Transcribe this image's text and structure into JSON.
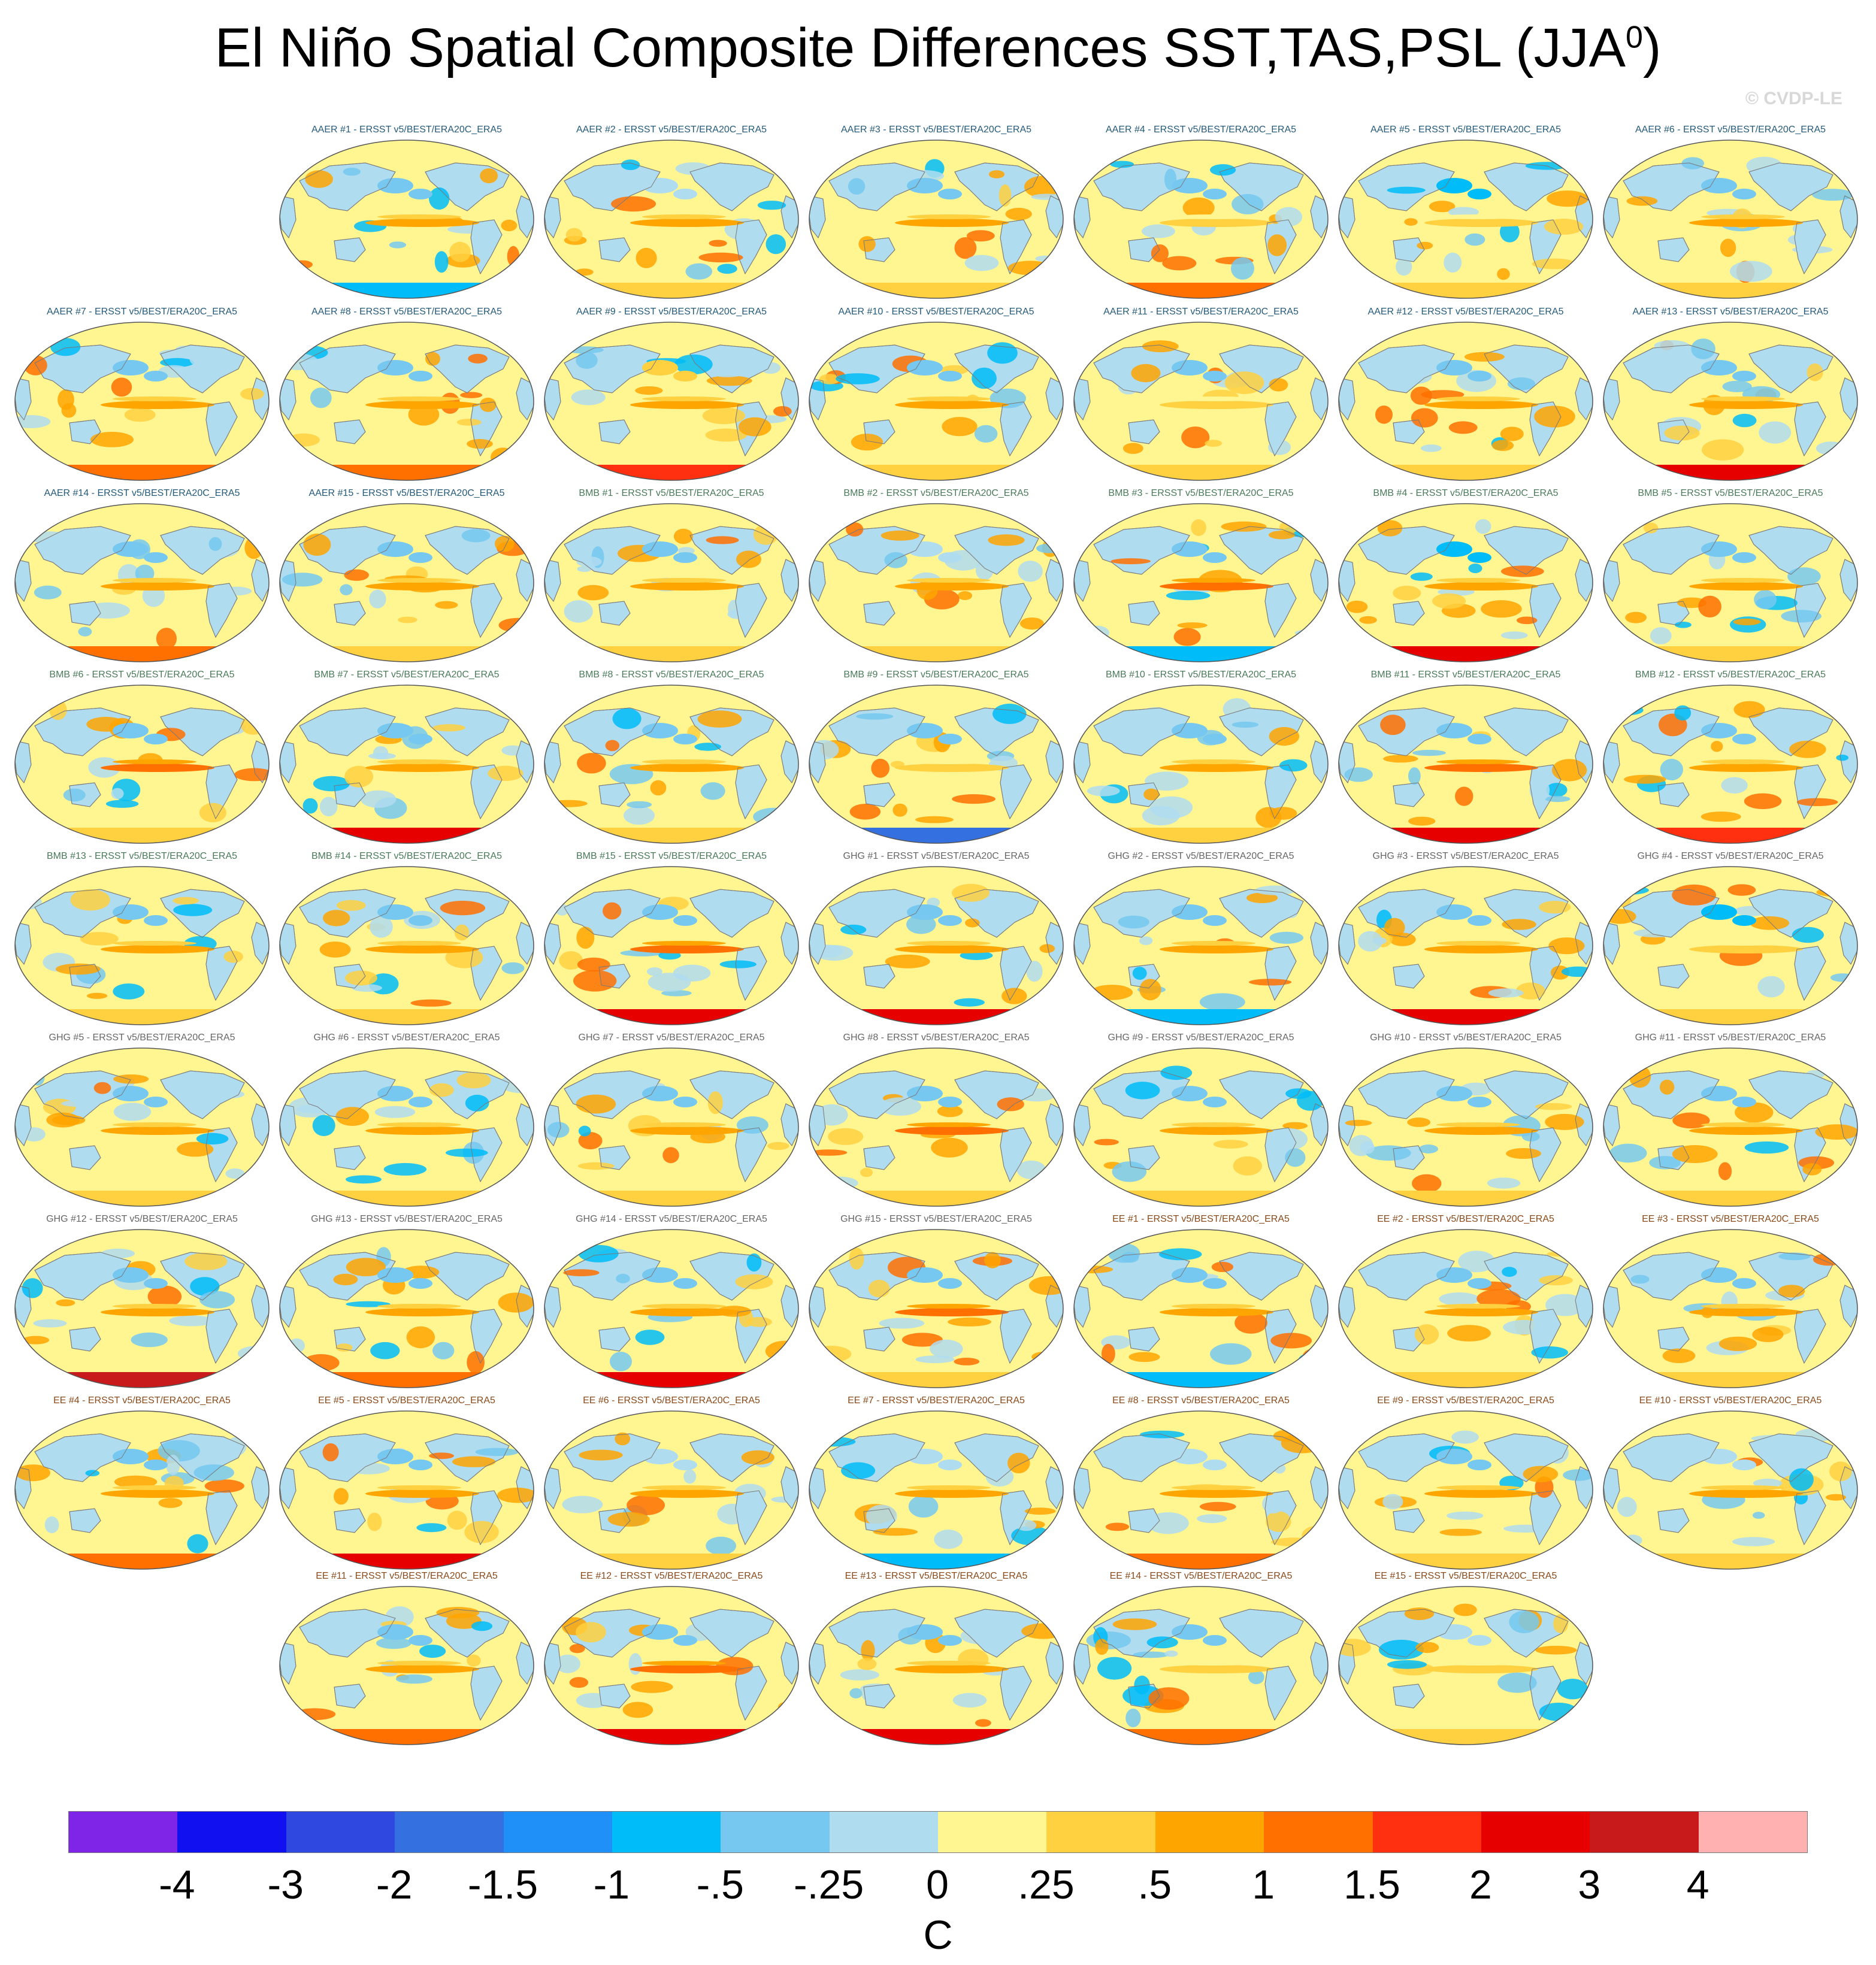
{
  "title": {
    "text": "El Niño Spatial Composite Differences SST,TAS,PSL (JJA",
    "superscript": "0",
    "close": ")"
  },
  "copyright": "© CVDP-LE",
  "colors": {
    "land": "#b0dcf0",
    "ocean_base": "#fff591",
    "coast": "#7a7a7a",
    "label_aaer": "#245a7a",
    "label_bmb": "#4a7a5a",
    "label_ghg": "#666666",
    "label_ee": "#8a4a1a"
  },
  "chart_data": {
    "type": "heatmap",
    "title": "El Niño Spatial Composite Differences SST,TAS,PSL (JJA0)",
    "projection": "Robinson global map",
    "variable": "SST/TAS composite difference",
    "units": "C",
    "colorbar": {
      "ticks": [
        "-4",
        "-3",
        "-2",
        "-1.5",
        "-1",
        "-.5",
        "-.25",
        "0",
        ".25",
        ".5",
        "1",
        "1.5",
        "2",
        "3",
        "4"
      ],
      "colors": [
        "#7f25e8",
        "#1010f0",
        "#2e48e0",
        "#3470e0",
        "#1e90f8",
        "#00bcf8",
        "#76c8f0",
        "#b0dcf0",
        "#fff591",
        "#ffd040",
        "#ffa500",
        "#ff7000",
        "#ff3010",
        "#e60000",
        "#c81a1a",
        "#ffb0b0"
      ]
    },
    "panels": [
      {
        "label": "AAER #1 - ERSST v5/BEST/ERA20C_ERA5",
        "group": "AAER",
        "antarctic_anomaly": -1.0,
        "nino34_anomaly": 0.5,
        "north_pacific_anomaly": -0.5
      },
      {
        "label": "AAER #2 - ERSST v5/BEST/ERA20C_ERA5",
        "group": "AAER",
        "antarctic_anomaly": 0.25,
        "nino34_anomaly": 0.5,
        "north_pacific_anomaly": -0.25
      },
      {
        "label": "AAER #3 - ERSST v5/BEST/ERA20C_ERA5",
        "group": "AAER",
        "antarctic_anomaly": 0.25,
        "nino34_anomaly": 0.5,
        "north_pacific_anomaly": -0.5
      },
      {
        "label": "AAER #4 - ERSST v5/BEST/ERA20C_ERA5",
        "group": "AAER",
        "antarctic_anomaly": 1.0,
        "nino34_anomaly": 0.25,
        "north_pacific_anomaly": -0.5
      },
      {
        "label": "AAER #5 - ERSST v5/BEST/ERA20C_ERA5",
        "group": "AAER",
        "antarctic_anomaly": 0.25,
        "nino34_anomaly": 0.25,
        "north_pacific_anomaly": -1.0
      },
      {
        "label": "AAER #6 - ERSST v5/BEST/ERA20C_ERA5",
        "group": "AAER",
        "antarctic_anomaly": 0.25,
        "nino34_anomaly": 0.5,
        "north_pacific_anomaly": -0.5
      },
      {
        "label": "AAER #7 - ERSST v5/BEST/ERA20C_ERA5",
        "group": "AAER",
        "antarctic_anomaly": 1.0,
        "nino34_anomaly": 0.5,
        "north_pacific_anomaly": -0.5
      },
      {
        "label": "AAER #8 - ERSST v5/BEST/ERA20C_ERA5",
        "group": "AAER",
        "antarctic_anomaly": 1.0,
        "nino34_anomaly": 0.5,
        "north_pacific_anomaly": -0.5
      },
      {
        "label": "AAER #9 - ERSST v5/BEST/ERA20C_ERA5",
        "group": "AAER",
        "antarctic_anomaly": 1.5,
        "nino34_anomaly": 0.5,
        "north_pacific_anomaly": 0.25
      },
      {
        "label": "AAER #10 - ERSST v5/BEST/ERA20C_ERA5",
        "group": "AAER",
        "antarctic_anomaly": 0.25,
        "nino34_anomaly": 0.5,
        "north_pacific_anomaly": -0.5
      },
      {
        "label": "AAER #11 - ERSST v5/BEST/ERA20C_ERA5",
        "group": "AAER",
        "antarctic_anomaly": 0.25,
        "nino34_anomaly": 0.25,
        "north_pacific_anomaly": -0.5
      },
      {
        "label": "AAER #12 - ERSST v5/BEST/ERA20C_ERA5",
        "group": "AAER",
        "antarctic_anomaly": 0.25,
        "nino34_anomaly": 0.5,
        "north_pacific_anomaly": -0.5
      },
      {
        "label": "AAER #13 - ERSST v5/BEST/ERA20C_ERA5",
        "group": "AAER",
        "antarctic_anomaly": 2.0,
        "nino34_anomaly": 0.5,
        "north_pacific_anomaly": -0.5
      },
      {
        "label": "AAER #14 - ERSST v5/BEST/ERA20C_ERA5",
        "group": "AAER",
        "antarctic_anomaly": 1.0,
        "nino34_anomaly": 0.5,
        "north_pacific_anomaly": -0.5
      },
      {
        "label": "AAER #15 - ERSST v5/BEST/ERA20C_ERA5",
        "group": "AAER",
        "antarctic_anomaly": 0.25,
        "nino34_anomaly": 0.5,
        "north_pacific_anomaly": -0.5
      },
      {
        "label": "BMB #1 - ERSST v5/BEST/ERA20C_ERA5",
        "group": "BMB",
        "antarctic_anomaly": 0.25,
        "nino34_anomaly": 0.5,
        "north_pacific_anomaly": -0.5
      },
      {
        "label": "BMB #2 - ERSST v5/BEST/ERA20C_ERA5",
        "group": "BMB",
        "antarctic_anomaly": 0.25,
        "nino34_anomaly": 0.5,
        "north_pacific_anomaly": -0.25
      },
      {
        "label": "BMB #3 - ERSST v5/BEST/ERA20C_ERA5",
        "group": "BMB",
        "antarctic_anomaly": -1.0,
        "nino34_anomaly": 1.0,
        "north_pacific_anomaly": -0.5
      },
      {
        "label": "BMB #4 - ERSST v5/BEST/ERA20C_ERA5",
        "group": "BMB",
        "antarctic_anomaly": 2.0,
        "nino34_anomaly": 0.5,
        "north_pacific_anomaly": -1.0
      },
      {
        "label": "BMB #5 - ERSST v5/BEST/ERA20C_ERA5",
        "group": "BMB",
        "antarctic_anomaly": 0.25,
        "nino34_anomaly": 0.5,
        "north_pacific_anomaly": -0.5
      },
      {
        "label": "BMB #6 - ERSST v5/BEST/ERA20C_ERA5",
        "group": "BMB",
        "antarctic_anomaly": 0.25,
        "nino34_anomaly": 1.0,
        "north_pacific_anomaly": -0.5
      },
      {
        "label": "BMB #7 - ERSST v5/BEST/ERA20C_ERA5",
        "group": "BMB",
        "antarctic_anomaly": 2.0,
        "nino34_anomaly": 0.5,
        "north_pacific_anomaly": -0.5
      },
      {
        "label": "BMB #8 - ERSST v5/BEST/ERA20C_ERA5",
        "group": "BMB",
        "antarctic_anomaly": 0.25,
        "nino34_anomaly": 0.5,
        "north_pacific_anomaly": -0.5
      },
      {
        "label": "BMB #9 - ERSST v5/BEST/ERA20C_ERA5",
        "group": "BMB",
        "antarctic_anomaly": -2.0,
        "nino34_anomaly": 0.25,
        "north_pacific_anomaly": -0.5
      },
      {
        "label": "BMB #10 - ERSST v5/BEST/ERA20C_ERA5",
        "group": "BMB",
        "antarctic_anomaly": 0.25,
        "nino34_anomaly": 0.5,
        "north_pacific_anomaly": -0.5
      },
      {
        "label": "BMB #11 - ERSST v5/BEST/ERA20C_ERA5",
        "group": "BMB",
        "antarctic_anomaly": 2.0,
        "nino34_anomaly": 1.0,
        "north_pacific_anomaly": -0.5
      },
      {
        "label": "BMB #12 - ERSST v5/BEST/ERA20C_ERA5",
        "group": "BMB",
        "antarctic_anomaly": 1.5,
        "nino34_anomaly": 0.5,
        "north_pacific_anomaly": -0.5
      },
      {
        "label": "BMB #13 - ERSST v5/BEST/ERA20C_ERA5",
        "group": "BMB",
        "antarctic_anomaly": 0.25,
        "nino34_anomaly": 0.5,
        "north_pacific_anomaly": -0.5
      },
      {
        "label": "BMB #14 - ERSST v5/BEST/ERA20C_ERA5",
        "group": "BMB",
        "antarctic_anomaly": 0.25,
        "nino34_anomaly": 0.5,
        "north_pacific_anomaly": -0.5
      },
      {
        "label": "BMB #15 - ERSST v5/BEST/ERA20C_ERA5",
        "group": "BMB",
        "antarctic_anomaly": 2.0,
        "nino34_anomaly": 1.0,
        "north_pacific_anomaly": -0.5
      },
      {
        "label": "GHG #1 - ERSST v5/BEST/ERA20C_ERA5",
        "group": "GHG",
        "antarctic_anomaly": 2.0,
        "nino34_anomaly": 0.5,
        "north_pacific_anomaly": -0.5
      },
      {
        "label": "GHG #2 - ERSST v5/BEST/ERA20C_ERA5",
        "group": "GHG",
        "antarctic_anomaly": -1.0,
        "nino34_anomaly": 0.5,
        "north_pacific_anomaly": -0.5
      },
      {
        "label": "GHG #3 - ERSST v5/BEST/ERA20C_ERA5",
        "group": "GHG",
        "antarctic_anomaly": 2.0,
        "nino34_anomaly": 0.5,
        "north_pacific_anomaly": -0.5
      },
      {
        "label": "GHG #4 - ERSST v5/BEST/ERA20C_ERA5",
        "group": "GHG",
        "antarctic_anomaly": 0.25,
        "nino34_anomaly": 0.25,
        "north_pacific_anomaly": -1.0
      },
      {
        "label": "GHG #5 - ERSST v5/BEST/ERA20C_ERA5",
        "group": "GHG",
        "antarctic_anomaly": 0.25,
        "nino34_anomaly": 0.5,
        "north_pacific_anomaly": -0.5
      },
      {
        "label": "GHG #6 - ERSST v5/BEST/ERA20C_ERA5",
        "group": "GHG",
        "antarctic_anomaly": 0.25,
        "nino34_anomaly": 0.5,
        "north_pacific_anomaly": -0.5
      },
      {
        "label": "GHG #7 - ERSST v5/BEST/ERA20C_ERA5",
        "group": "GHG",
        "antarctic_anomaly": 0.25,
        "nino34_anomaly": 0.5,
        "north_pacific_anomaly": -0.5
      },
      {
        "label": "GHG #8 - ERSST v5/BEST/ERA20C_ERA5",
        "group": "GHG",
        "antarctic_anomaly": 0.25,
        "nino34_anomaly": 1.0,
        "north_pacific_anomaly": -0.5
      },
      {
        "label": "GHG #9 - ERSST v5/BEST/ERA20C_ERA5",
        "group": "GHG",
        "antarctic_anomaly": 0.25,
        "nino34_anomaly": 0.5,
        "north_pacific_anomaly": -0.5
      },
      {
        "label": "GHG #10 - ERSST v5/BEST/ERA20C_ERA5",
        "group": "GHG",
        "antarctic_anomaly": 0.25,
        "nino34_anomaly": 0.5,
        "north_pacific_anomaly": -0.5
      },
      {
        "label": "GHG #11 - ERSST v5/BEST/ERA20C_ERA5",
        "group": "GHG",
        "antarctic_anomaly": 0.25,
        "nino34_anomaly": 0.5,
        "north_pacific_anomaly": -0.5
      },
      {
        "label": "GHG #12 - ERSST v5/BEST/ERA20C_ERA5",
        "group": "GHG",
        "antarctic_anomaly": 3.0,
        "nino34_anomaly": 0.5,
        "north_pacific_anomaly": -0.5
      },
      {
        "label": "GHG #13 - ERSST v5/BEST/ERA20C_ERA5",
        "group": "GHG",
        "antarctic_anomaly": 1.0,
        "nino34_anomaly": 0.5,
        "north_pacific_anomaly": -0.5
      },
      {
        "label": "GHG #14 - ERSST v5/BEST/ERA20C_ERA5",
        "group": "GHG",
        "antarctic_anomaly": 2.0,
        "nino34_anomaly": 0.5,
        "north_pacific_anomaly": -0.5
      },
      {
        "label": "GHG #15 - ERSST v5/BEST/ERA20C_ERA5",
        "group": "GHG",
        "antarctic_anomaly": 0.25,
        "nino34_anomaly": 1.0,
        "north_pacific_anomaly": -0.5
      },
      {
        "label": "EE #1 - ERSST v5/BEST/ERA20C_ERA5",
        "group": "EE",
        "antarctic_anomaly": -1.0,
        "nino34_anomaly": 0.5,
        "north_pacific_anomaly": -0.5
      },
      {
        "label": "EE #2 - ERSST v5/BEST/ERA20C_ERA5",
        "group": "EE",
        "antarctic_anomaly": 0.25,
        "nino34_anomaly": 0.5,
        "north_pacific_anomaly": -0.5
      },
      {
        "label": "EE #3 - ERSST v5/BEST/ERA20C_ERA5",
        "group": "EE",
        "antarctic_anomaly": 0.25,
        "nino34_anomaly": 0.5,
        "north_pacific_anomaly": -0.5
      },
      {
        "label": "EE #4 - ERSST v5/BEST/ERA20C_ERA5",
        "group": "EE",
        "antarctic_anomaly": 1.0,
        "nino34_anomaly": 0.5,
        "north_pacific_anomaly": -0.5
      },
      {
        "label": "EE #5 - ERSST v5/BEST/ERA20C_ERA5",
        "group": "EE",
        "antarctic_anomaly": 2.0,
        "nino34_anomaly": 0.5,
        "north_pacific_anomaly": -0.5
      },
      {
        "label": "EE #6 - ERSST v5/BEST/ERA20C_ERA5",
        "group": "EE",
        "antarctic_anomaly": 0.25,
        "nino34_anomaly": 0.5,
        "north_pacific_anomaly": -0.25
      },
      {
        "label": "EE #7 - ERSST v5/BEST/ERA20C_ERA5",
        "group": "EE",
        "antarctic_anomaly": -1.0,
        "nino34_anomaly": 0.5,
        "north_pacific_anomaly": -0.25
      },
      {
        "label": "EE #8 - ERSST v5/BEST/ERA20C_ERA5",
        "group": "EE",
        "antarctic_anomaly": 1.0,
        "nino34_anomaly": 0.5,
        "north_pacific_anomaly": -0.25
      },
      {
        "label": "EE #9 - ERSST v5/BEST/ERA20C_ERA5",
        "group": "EE",
        "antarctic_anomaly": 0.25,
        "nino34_anomaly": 0.5,
        "north_pacific_anomaly": -0.5
      },
      {
        "label": "EE #10 - ERSST v5/BEST/ERA20C_ERA5",
        "group": "EE",
        "antarctic_anomaly": 0.25,
        "nino34_anomaly": 0.5,
        "north_pacific_anomaly": -0.25
      },
      {
        "label": "EE #11 - ERSST v5/BEST/ERA20C_ERA5",
        "group": "EE",
        "antarctic_anomaly": 1.0,
        "nino34_anomaly": 0.5,
        "north_pacific_anomaly": -0.5
      },
      {
        "label": "EE #12 - ERSST v5/BEST/ERA20C_ERA5",
        "group": "EE",
        "antarctic_anomaly": 2.0,
        "nino34_anomaly": 1.0,
        "north_pacific_anomaly": -0.5
      },
      {
        "label": "EE #13 - ERSST v5/BEST/ERA20C_ERA5",
        "group": "EE",
        "antarctic_anomaly": 2.0,
        "nino34_anomaly": 0.5,
        "north_pacific_anomaly": -0.5
      },
      {
        "label": "EE #14 - ERSST v5/BEST/ERA20C_ERA5",
        "group": "EE",
        "antarctic_anomaly": 1.0,
        "nino34_anomaly": 0.25,
        "north_pacific_anomaly": -0.5
      },
      {
        "label": "EE #15 - ERSST v5/BEST/ERA20C_ERA5",
        "group": "EE",
        "antarctic_anomaly": 0.25,
        "nino34_anomaly": 0.25,
        "north_pacific_anomaly": -0.25
      }
    ]
  }
}
